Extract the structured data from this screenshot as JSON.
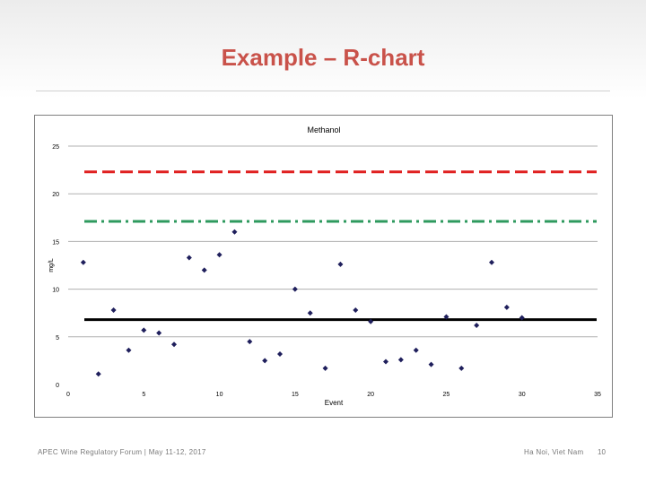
{
  "slide": {
    "title": "Example – R-chart",
    "footer_left": "APEC Wine Regulatory Forum | May 11-12, 2017",
    "footer_right": "Ha Noi, Viet Nam",
    "page_number": "10"
  },
  "chart_data": {
    "type": "scatter",
    "title": "Methanol",
    "xlabel": "Event",
    "ylabel": "mg/L",
    "xlim": [
      0,
      35
    ],
    "ylim": [
      0,
      25
    ],
    "xticks": [
      0,
      5,
      10,
      15,
      20,
      25,
      30,
      35
    ],
    "yticks": [
      0,
      5,
      10,
      15,
      20,
      25
    ],
    "grid": true,
    "series": [
      {
        "type": "scatter",
        "color": "#1f1f5c",
        "x": [
          1,
          2,
          3,
          4,
          5,
          6,
          7,
          8,
          9,
          10,
          11,
          12,
          13,
          14,
          15,
          16,
          17,
          18,
          19,
          20,
          21,
          22,
          23,
          24,
          25,
          26,
          27,
          28,
          29,
          30
        ],
        "y": [
          12.8,
          1.1,
          7.8,
          3.6,
          5.7,
          5.4,
          4.2,
          13.3,
          12.0,
          13.6,
          16.0,
          4.5,
          2.5,
          3.2,
          10.0,
          7.5,
          1.7,
          12.6,
          7.8,
          6.6,
          2.4,
          2.6,
          3.6,
          2.1,
          7.1,
          1.7,
          6.2,
          12.8,
          8.1,
          7.0
        ]
      }
    ],
    "reference_lines": [
      {
        "style": "dashed",
        "color": "#e02020",
        "y": 22.3
      },
      {
        "style": "dash-dot",
        "color": "#2e9a5e",
        "y": 17.1
      },
      {
        "style": "solid",
        "color": "#000000",
        "y": 6.8
      }
    ]
  }
}
